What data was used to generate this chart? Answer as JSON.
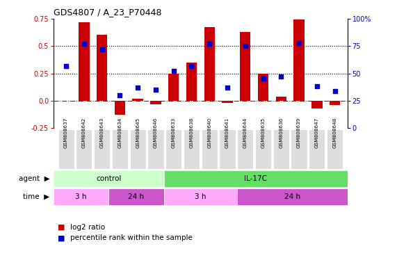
{
  "title": "GDS4807 / A_23_P70448",
  "samples": [
    "GSM808637",
    "GSM808642",
    "GSM808643",
    "GSM808634",
    "GSM808645",
    "GSM808646",
    "GSM808633",
    "GSM808638",
    "GSM808640",
    "GSM808641",
    "GSM808644",
    "GSM808635",
    "GSM808636",
    "GSM808639",
    "GSM808647",
    "GSM808648"
  ],
  "log2_ratio": [
    0.0,
    0.72,
    0.6,
    -0.13,
    0.02,
    -0.03,
    0.25,
    0.35,
    0.67,
    -0.02,
    0.63,
    0.25,
    0.04,
    0.74,
    -0.07,
    -0.04
  ],
  "percentile_rank": [
    57,
    77,
    72,
    30,
    37,
    35,
    52,
    57,
    77,
    37,
    75,
    45,
    47,
    78,
    38,
    34
  ],
  "bar_color": "#cc0000",
  "dot_color": "#0000cc",
  "ylim": [
    -0.25,
    0.75
  ],
  "yticks_left": [
    -0.25,
    0.0,
    0.25,
    0.5,
    0.75
  ],
  "yticks_right": [
    0,
    25,
    50,
    75,
    100
  ],
  "hlines": [
    0.0,
    0.25,
    0.5
  ],
  "hline_styles": [
    "dashdot",
    "dotted",
    "dotted"
  ],
  "hline_colors": [
    "#cc0000",
    "#000000",
    "#000000"
  ],
  "agent_groups": [
    {
      "label": "control",
      "start": 0,
      "end": 6,
      "color": "#ccffcc"
    },
    {
      "label": "IL-17C",
      "start": 6,
      "end": 16,
      "color": "#66dd66"
    }
  ],
  "time_groups": [
    {
      "label": "3 h",
      "start": 0,
      "end": 3,
      "color": "#ffaaff"
    },
    {
      "label": "24 h",
      "start": 3,
      "end": 6,
      "color": "#cc55cc"
    },
    {
      "label": "3 h",
      "start": 6,
      "end": 10,
      "color": "#ffaaff"
    },
    {
      "label": "24 h",
      "start": 10,
      "end": 16,
      "color": "#cc55cc"
    }
  ],
  "legend_items": [
    {
      "label": "log2 ratio",
      "color": "#cc0000"
    },
    {
      "label": "percentile rank within the sample",
      "color": "#0000cc"
    }
  ],
  "background_color": "#ffffff",
  "label_agent": "agent",
  "label_time": "time"
}
